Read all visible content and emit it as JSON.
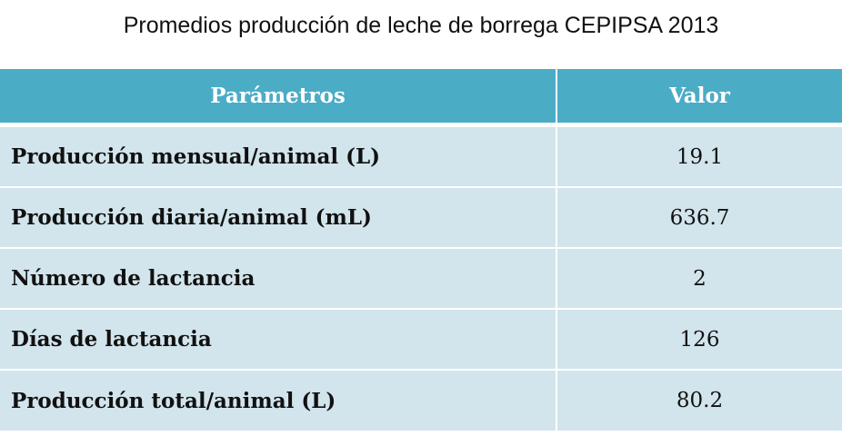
{
  "chart_data": {
    "type": "table",
    "title": "Promedios producción de leche de borrega CEPIPSA 2013",
    "columns": [
      "Parámetros",
      "Valor"
    ],
    "rows": [
      {
        "parameter": "Producción mensual/animal (L)",
        "value": "19.1"
      },
      {
        "parameter": "Producción diaria/animal (mL)",
        "value": "636.7"
      },
      {
        "parameter": "Número de lactancia",
        "value": "2"
      },
      {
        "parameter": "Días de lactancia",
        "value": "126"
      },
      {
        "parameter": "Producción total/animal (L)",
        "value": "80.2"
      }
    ]
  },
  "colors": {
    "header_bg": "#4bacc6",
    "row_bg": "#d2e4ec",
    "header_text": "#ffffff",
    "body_text": "#111111"
  }
}
